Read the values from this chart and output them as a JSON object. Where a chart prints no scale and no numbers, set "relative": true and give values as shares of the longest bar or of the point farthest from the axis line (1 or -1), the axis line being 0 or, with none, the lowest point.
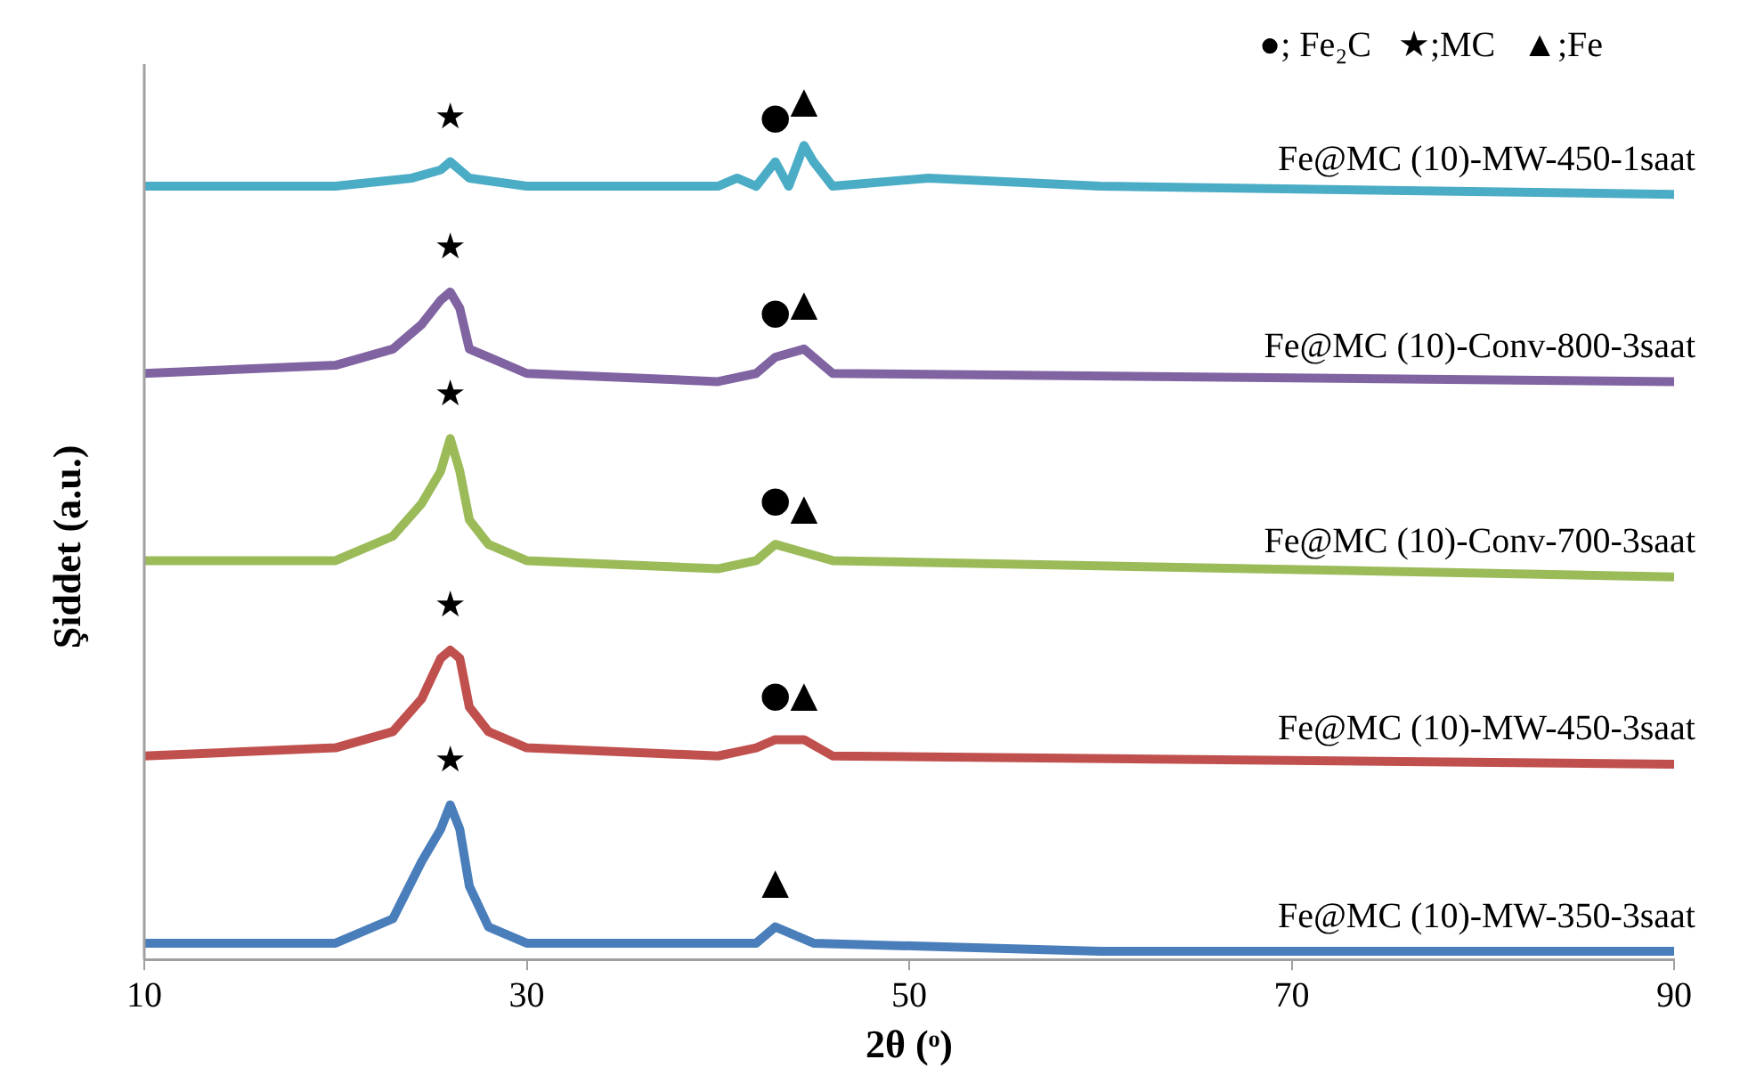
{
  "chart_data": {
    "type": "line",
    "xlabel": "2θ (ᵒ)",
    "ylabel": "Şiddet (a.u.)",
    "relative": true,
    "xlim": [
      10,
      90
    ],
    "xticks": [
      10,
      30,
      50,
      70,
      90
    ],
    "grid": false,
    "legend": false,
    "marker": "none",
    "line_style": "solid",
    "tick_labels": "x",
    "series": [
      {
        "name": "Fe@MC (10)-MW-350-3saat",
        "color": "#4a7ebb",
        "x": [
          10,
          20,
          23,
          24.5,
          25.5,
          26,
          26.5,
          27,
          28,
          30,
          40,
          42,
          43,
          45,
          60,
          90
        ],
        "values": [
          0.02,
          0.02,
          0.05,
          0.12,
          0.16,
          0.19,
          0.16,
          0.09,
          0.04,
          0.02,
          0.02,
          0.02,
          0.04,
          0.02,
          0.01,
          0.01
        ]
      },
      {
        "name": "Fe@MC (10)-MW-450-3saat",
        "color": "#c0504d",
        "x": [
          10,
          20,
          23,
          24.5,
          25.5,
          26,
          26.5,
          27,
          28,
          30,
          40,
          42,
          43,
          44.5,
          46,
          90
        ],
        "values": [
          0.25,
          0.26,
          0.28,
          0.32,
          0.37,
          0.38,
          0.37,
          0.31,
          0.28,
          0.26,
          0.25,
          0.26,
          0.27,
          0.27,
          0.25,
          0.24
        ]
      },
      {
        "name": "Fe@MC (10)-Conv-700-3saat",
        "color": "#9bbb59",
        "x": [
          10,
          20,
          23,
          24.5,
          25.5,
          26,
          26.5,
          27,
          28,
          30,
          40,
          42,
          43,
          44.5,
          46,
          90
        ],
        "values": [
          0.49,
          0.49,
          0.52,
          0.56,
          0.6,
          0.64,
          0.6,
          0.54,
          0.51,
          0.49,
          0.48,
          0.49,
          0.51,
          0.5,
          0.49,
          0.47
        ]
      },
      {
        "name": "Fe@MC (10)-Conv-800-3saat",
        "color": "#8064a2",
        "x": [
          10,
          20,
          23,
          24.5,
          25.5,
          26,
          26.5,
          27,
          28,
          30,
          40,
          42,
          43,
          44.5,
          46,
          90
        ],
        "values": [
          0.72,
          0.73,
          0.75,
          0.78,
          0.81,
          0.82,
          0.8,
          0.75,
          0.74,
          0.72,
          0.71,
          0.72,
          0.74,
          0.75,
          0.72,
          0.71
        ]
      },
      {
        "name": "Fe@MC (10)-MW-450-1saat",
        "color": "#4bacc6",
        "x": [
          10,
          20,
          24,
          25.5,
          26,
          26.5,
          27,
          30,
          40,
          41,
          42,
          43,
          43.7,
          44.5,
          45,
          46,
          51,
          60,
          90
        ],
        "values": [
          0.95,
          0.95,
          0.96,
          0.97,
          0.98,
          0.97,
          0.96,
          0.95,
          0.95,
          0.96,
          0.95,
          0.98,
          0.95,
          1,
          0.98,
          0.95,
          0.96,
          0.95,
          0.94
        ]
      }
    ],
    "annotations": [
      "●; Fe₂C   ★;MC   ▲;Fe",
      {
        "text": "★",
        "x": 26,
        "y": 0.19
      },
      {
        "text": "▲",
        "x": 43,
        "y": 0.04
      },
      {
        "text": "★",
        "x": 26,
        "y": 0.38
      },
      {
        "text": "●",
        "x": 43,
        "y": 0.27
      },
      {
        "text": "▲",
        "x": 44.5,
        "y": 0.27
      },
      {
        "text": "★",
        "x": 26,
        "y": 0.64
      },
      {
        "text": "●",
        "x": 43,
        "y": 0.51
      },
      {
        "text": "▲",
        "x": 44.5,
        "y": 0.5
      },
      {
        "text": "★",
        "x": 26,
        "y": 0.82
      },
      {
        "text": "●",
        "x": 43,
        "y": 0.74
      },
      {
        "text": "▲",
        "x": 44.5,
        "y": 0.75
      },
      {
        "text": "★",
        "x": 26,
        "y": 0.98
      },
      {
        "text": "●",
        "x": 43,
        "y": 0.98
      },
      {
        "text": "▲",
        "x": 44.5,
        "y": 1
      }
    ]
  }
}
